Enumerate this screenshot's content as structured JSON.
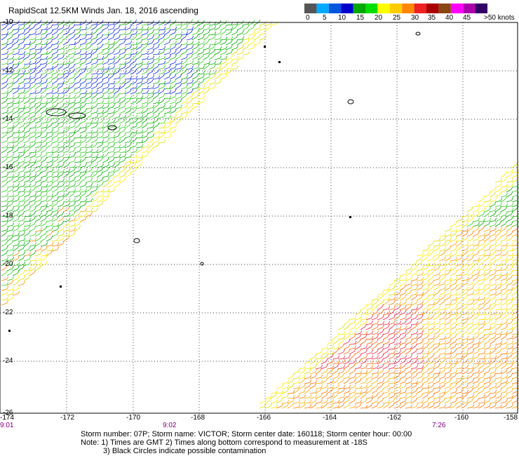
{
  "title": "RapidScat 12.5KM Winds Jan. 18, 2016 ascending",
  "scale": {
    "colors": [
      "#555555",
      "#00aaff",
      "#0055dd",
      "#0000cc",
      "#00aa00",
      "#00dd00",
      "#ffff00",
      "#ffcc00",
      "#ff8800",
      "#ee2222",
      "#aa0000",
      "#8b4513",
      "#ff00ff",
      "#aa00aa",
      "#330066"
    ],
    "labels": [
      "0",
      "5",
      "10",
      "15",
      "20",
      "25",
      "30",
      "35",
      "40",
      "45",
      ">50 knots"
    ]
  },
  "axes": {
    "x_labels": [
      "-174",
      "-172",
      "-170",
      "-168",
      "-166",
      "-164",
      "-162",
      "-160",
      "-158"
    ],
    "y_labels": [
      "-10",
      "-12",
      "-14",
      "-16",
      "-18",
      "-20",
      "-22",
      "-24",
      "-26"
    ]
  },
  "times": [
    "9:01",
    "9:02",
    "7:26"
  ],
  "notes": {
    "line1": "Storm number: 07P;  Storm name: VICTOR;  Storm center date: 160118;  Storm center hour: 00:00",
    "line2": "Note: 1) Times are GMT  2) Times along bottom correspond to measurement at -18S",
    "line3": "3) Black Circles indicate possible contamination"
  }
}
